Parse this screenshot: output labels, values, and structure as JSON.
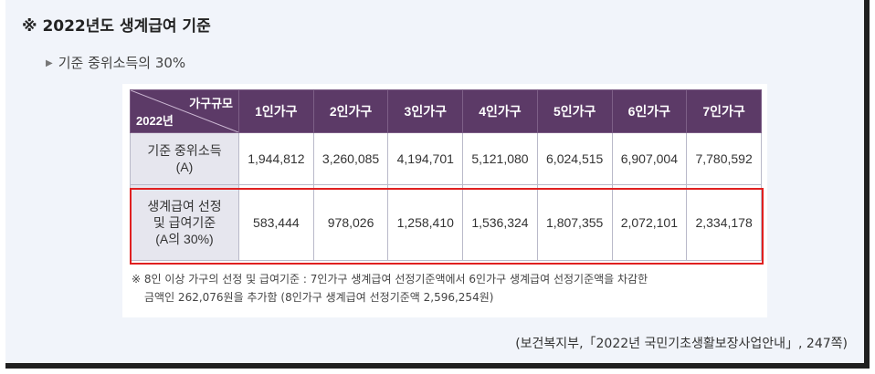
{
  "heading": "※ 2022년도 생계급여 기준",
  "subheading": "기준 중위소득의 30%",
  "table": {
    "corner_top": "가구규모",
    "corner_bottom": "2022년",
    "columns": [
      "1인가구",
      "2인가구",
      "3인가구",
      "4인가구",
      "5인가구",
      "6인가구",
      "7인가구"
    ],
    "rows": [
      {
        "label_line1": "기준 중위소득",
        "label_line2": "(A)",
        "label_line3": "",
        "values": [
          "1,944,812",
          "3,260,085",
          "4,194,701",
          "5,121,080",
          "6,024,515",
          "6,907,004",
          "7,780,592"
        ]
      },
      {
        "label_line1": "생계급여 선정",
        "label_line2": "및 급여기준",
        "label_line3": "(A의 30%)",
        "values": [
          "583,444",
          "978,026",
          "1,258,410",
          "1,536,324",
          "1,807,355",
          "2,072,101",
          "2,334,178"
        ]
      }
    ]
  },
  "note": {
    "line1": "※ 8인 이상 가구의 선정 및 급여기준 : 7인가구 생계급여 선정기준액에서 6인가구 생계급여 선정기준액을 차감한",
    "line2": "금액인 262,076원을 추가함 (8인가구 생계급여 선정기준액 2,596,254원)"
  },
  "source": "(보건복지부,「2022년 국민기초생활보장사업안내」, 247쪽)",
  "colors": {
    "header_bg": "#5c3a67",
    "label_bg": "#e6e6ee",
    "highlight": "#e02020",
    "frame_bg": "#f1f4fa"
  }
}
